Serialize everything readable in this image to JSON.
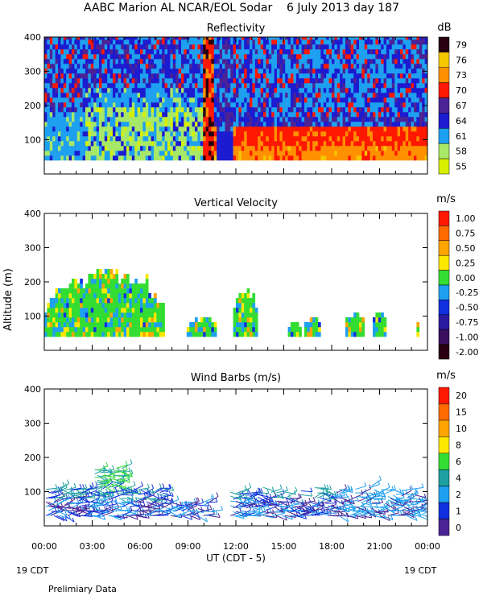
{
  "figure_title": "AABC Marion AL NCAR/EOL Sodar    6 July 2013 day 187",
  "x_axis": {
    "tick_labels": [
      "00:00",
      "03:00",
      "06:00",
      "09:00",
      "12:00",
      "15:00",
      "18:00",
      "21:00",
      "00:00"
    ],
    "label": "UT  (CDT - 5)",
    "left_date": "19 CDT",
    "right_date": "19 CDT"
  },
  "footer_note": "Prelimiary Data",
  "chart_data": [
    {
      "type": "heatmap",
      "title": "Reflectivity",
      "units": "dB",
      "xlabel": "UT (CDT - 5)",
      "ylabel": "",
      "xlim_hours": [
        0,
        24
      ],
      "ylim": [
        0,
        400
      ],
      "yticks": [
        "400",
        "300",
        "200",
        "100"
      ],
      "colorbar": {
        "labels": [
          "79",
          "76",
          "73",
          "70",
          "67",
          "64",
          "61",
          "58",
          "55"
        ],
        "colors": [
          "#2a0010",
          "#f5c800",
          "#ff9000",
          "#ff1800",
          "#4b2395",
          "#1d1bd0",
          "#1ea0f0",
          "#a8e868",
          "#d8f000"
        ]
      },
      "description_values": [
        {
          "x_hours": [
            0,
            2.5
          ],
          "alt": [
            40,
            180
          ],
          "dominant_db": 61
        },
        {
          "x_hours": [
            2.5,
            9.5
          ],
          "alt": [
            40,
            200
          ],
          "dominant_db": 58
        },
        {
          "x_hours": [
            10,
            10.5
          ],
          "alt": [
            40,
            400
          ],
          "dominant_db": 73
        },
        {
          "x_hours": [
            12,
            24
          ],
          "alt": [
            40,
            120
          ],
          "dominant_db": 70
        }
      ]
    },
    {
      "type": "heatmap",
      "title": "Vertical Velocity",
      "units": "m/s",
      "xlabel": "UT (CDT - 5)",
      "ylabel": "Altitude (m)",
      "xlim_hours": [
        0,
        24
      ],
      "ylim": [
        0,
        400
      ],
      "yticks": [
        "400",
        "300",
        "200",
        "100"
      ],
      "colorbar": {
        "labels": [
          "1.00",
          "0.75",
          "0.50",
          "0.25",
          "0.00",
          "-0.25",
          "-0.50",
          "-0.75",
          "-1.00",
          "-2.00"
        ],
        "colors": [
          "#ff1800",
          "#ff6a00",
          "#ffa500",
          "#ffe800",
          "#33dd33",
          "#1ea0f0",
          "#1030e0",
          "#2a1aa0",
          "#3a1060",
          "#2a0010"
        ]
      },
      "description_values": [
        {
          "x_hours": [
            0,
            7.5
          ],
          "alt_max": 250,
          "dominant": 0.0
        },
        {
          "x_hours": [
            9,
            10.7
          ],
          "alt_max": 100,
          "dominant": 0.0
        },
        {
          "x_hours": [
            11.8,
            13.3
          ],
          "alt_max": 200,
          "dominant": 0.0
        },
        {
          "x_hours": [
            15.5,
            22
          ],
          "alt_max": 110,
          "dominant": 0.0
        }
      ]
    },
    {
      "type": "scatter",
      "title": "Wind Barbs (m/s)",
      "units": "m/s",
      "xlabel": "UT (CDT - 5)",
      "ylabel": "",
      "xlim_hours": [
        0,
        24
      ],
      "ylim": [
        0,
        400
      ],
      "yticks": [
        "400",
        "300",
        "200",
        "100"
      ],
      "colorbar": {
        "labels": [
          "20",
          "15",
          "10",
          "8",
          "6",
          "4",
          "2",
          "1",
          "0"
        ],
        "colors": [
          "#ff1800",
          "#ff6a00",
          "#ffa500",
          "#ffe800",
          "#33dd33",
          "#1ea0a0",
          "#1ea0f0",
          "#1030e0",
          "#4b2395"
        ]
      },
      "description_values": [
        {
          "x_hours": [
            0,
            10.5
          ],
          "alt": [
            40,
            180
          ],
          "dominant_speed": 2
        },
        {
          "x_hours": [
            11.5,
            24
          ],
          "alt": [
            40,
            120
          ],
          "dominant_speed": 1
        }
      ]
    }
  ]
}
